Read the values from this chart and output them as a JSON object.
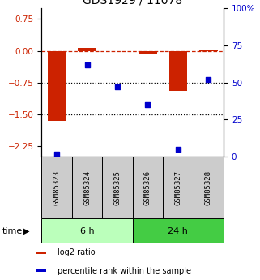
{
  "title": "GDS1929 / 11078",
  "samples": [
    "GSM85323",
    "GSM85324",
    "GSM85325",
    "GSM85326",
    "GSM85327",
    "GSM85328"
  ],
  "log2_ratio": [
    -1.65,
    0.07,
    0.0,
    -0.07,
    -0.95,
    0.03
  ],
  "percentile_rank": [
    2,
    62,
    47,
    35,
    5,
    52
  ],
  "bar_color": "#cc2200",
  "dot_color": "#0000cc",
  "ylim_left": [
    -2.5,
    1.0
  ],
  "ylim_right": [
    0,
    100
  ],
  "yticks_left": [
    0.75,
    0,
    -0.75,
    -1.5,
    -2.25
  ],
  "yticks_right": [
    100,
    75,
    50,
    25,
    0
  ],
  "hlines": [
    0,
    -0.75,
    -1.5
  ],
  "hline_styles": [
    "dashed",
    "dotted",
    "dotted"
  ],
  "hline_colors": [
    "#cc2200",
    "#000000",
    "#000000"
  ],
  "groups": [
    {
      "label": "6 h",
      "indices": [
        0,
        1,
        2
      ],
      "color": "#bbffbb"
    },
    {
      "label": "24 h",
      "indices": [
        3,
        4,
        5
      ],
      "color": "#44cc44"
    }
  ],
  "time_label": "time",
  "legend": [
    {
      "label": "log2 ratio",
      "color": "#cc2200"
    },
    {
      "label": "percentile rank within the sample",
      "color": "#0000cc"
    }
  ],
  "sample_box_color": "#cccccc",
  "title_fontsize": 10,
  "tick_fontsize": 7.5
}
